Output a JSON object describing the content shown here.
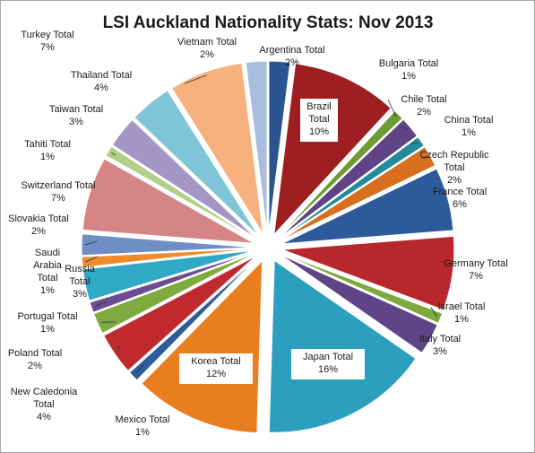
{
  "chart_data": {
    "type": "pie",
    "title": "LSI Auckland Nationality Stats: Nov 2013",
    "slices": [
      {
        "label": "Argentina Total",
        "percent_label": "2%",
        "value": 2,
        "color": "#2b5592"
      },
      {
        "label": "Brazil Total",
        "percent_label": "10%",
        "value": 10,
        "color": "#9e1f22"
      },
      {
        "label": "Bulgaria Total",
        "percent_label": "1%",
        "value": 1,
        "color": "#6e9a34"
      },
      {
        "label": "Chile Total",
        "percent_label": "2%",
        "value": 2,
        "color": "#5e4385"
      },
      {
        "label": "China Total",
        "percent_label": "1%",
        "value": 1,
        "color": "#238a9c"
      },
      {
        "label": "Czech Republic Total",
        "percent_label": "2%",
        "value": 2,
        "color": "#d86f1f"
      },
      {
        "label": "France Total",
        "percent_label": "6%",
        "value": 6,
        "color": "#2d5a9a"
      },
      {
        "label": "Germany Total",
        "percent_label": "7%",
        "value": 7,
        "color": "#b8272b"
      },
      {
        "label": "Israel Total",
        "percent_label": "1%",
        "value": 1,
        "color": "#7caa3c"
      },
      {
        "label": "Italy Total",
        "percent_label": "3%",
        "value": 3,
        "color": "#5f4487"
      },
      {
        "label": "Japan Total",
        "percent_label": "16%",
        "value": 16,
        "color": "#2b9fbd"
      },
      {
        "label": "Korea Total",
        "percent_label": "12%",
        "value": 12,
        "color": "#e87e1d"
      },
      {
        "label": "Mexico Total",
        "percent_label": "1%",
        "value": 1,
        "color": "#2d5c9c"
      },
      {
        "label": "New Caledonia Total",
        "percent_label": "4%",
        "value": 4,
        "color": "#c0292d"
      },
      {
        "label": "Poland Total",
        "percent_label": "2%",
        "value": 2,
        "color": "#7fab3e"
      },
      {
        "label": "Portugal Total",
        "percent_label": "1%",
        "value": 1,
        "color": "#6a4d92"
      },
      {
        "label": "Russia Total",
        "percent_label": "3%",
        "value": 3,
        "color": "#2fa9c6"
      },
      {
        "label": "Saudi Arabia Total",
        "percent_label": "1%",
        "value": 1,
        "color": "#f08a2c"
      },
      {
        "label": "Slovakia Total",
        "percent_label": "2%",
        "value": 2,
        "color": "#6f8fc4"
      },
      {
        "label": "Switzerland Total",
        "percent_label": "7%",
        "value": 7,
        "color": "#d58585"
      },
      {
        "label": "Tahiti Total",
        "percent_label": "1%",
        "value": 1,
        "color": "#b2cf8a"
      },
      {
        "label": "Taiwan Total",
        "percent_label": "3%",
        "value": 3,
        "color": "#a496c4"
      },
      {
        "label": "Thailand Total",
        "percent_label": "4%",
        "value": 4,
        "color": "#80c4d8"
      },
      {
        "label": "Turkey Total",
        "percent_label": "7%",
        "value": 7,
        "color": "#f7b17e"
      },
      {
        "label": "Vietnam Total",
        "percent_label": "2%",
        "value": 2,
        "color": "#a8bde0"
      }
    ],
    "legend": "none",
    "data_labels": "category name and percentage"
  }
}
